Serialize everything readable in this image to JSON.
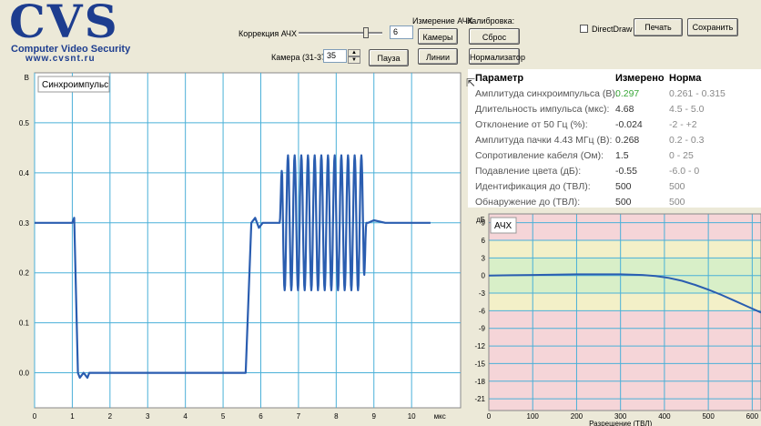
{
  "logo": {
    "title": "CVS",
    "subtitle": "Computer Video Security",
    "url": "www.cvsnt.ru"
  },
  "controls": {
    "correction_label": "Коррекция АЧХ",
    "correction_value": "6",
    "correction_level": 0.83,
    "camera_label": "Камера (31-37)",
    "camera_value": "35",
    "pause": "Пауза",
    "afc_measure_label": "Измерение АЧХ",
    "cameras_button": "Камеры",
    "lines_button": "Линии",
    "calibration_label": "Калибровка:",
    "reset_button": "Сброс",
    "normalizer_button": "Нормализатор",
    "directdraw_label": "DirectDraw",
    "print_button": "Печать",
    "save_button": "Сохранить"
  },
  "params": {
    "header": {
      "name": "Параметр",
      "measured": "Измерено",
      "norm": "Норма"
    },
    "rows": [
      {
        "name": "Амплитуда синхроимпульса (В):",
        "measured": "0.297",
        "norm": "0.261 - 0.315",
        "ok_color": "#3aa83a"
      },
      {
        "name": "Длительность импульса (мкс):",
        "measured": "4.68",
        "norm": "4.5 - 5.0"
      },
      {
        "name": "Отклонение от 50 Гц (%):",
        "measured": "-0.024",
        "norm": "-2 - +2"
      },
      {
        "name": "Амплитуда пачки 4.43 МГц (В):",
        "measured": "0.268",
        "norm": "0.2 - 0.3"
      },
      {
        "name": "Сопротивление кабеля (Ом):",
        "measured": "1.5",
        "norm": "0 - 25"
      },
      {
        "name": "Подавление цвета (дБ):",
        "measured": "-0.55",
        "norm": "-6.0 - 0"
      },
      {
        "name": "Идентификация до (ТВЛ):",
        "measured": "500",
        "norm": "500"
      },
      {
        "name": "Обнаружение до (ТВЛ):",
        "measured": "500",
        "norm": "500"
      }
    ]
  },
  "chart_data": [
    {
      "type": "line",
      "title": "Синхроимпульс",
      "ylabel": "В",
      "xlabel": "мкс",
      "x_ticks": [
        "0",
        "1",
        "2",
        "3",
        "4",
        "5",
        "6",
        "7",
        "8",
        "9",
        "10"
      ],
      "y_ticks": [
        "0.0",
        "0.1",
        "0.2",
        "0.3",
        "0.4",
        "0.5"
      ],
      "xlim": [
        0,
        11.3
      ],
      "ylim": [
        -0.07,
        0.6
      ],
      "grid": true,
      "series": [
        {
          "color": "#2a5db0",
          "x": [
            0,
            1.0,
            1.05,
            1.15,
            1.2,
            1.3,
            1.4,
            1.45,
            1.55,
            5.5,
            5.6,
            5.75,
            5.85,
            5.95,
            6.05,
            6.2,
            6.4
          ],
          "y": [
            0.3,
            0.3,
            0.31,
            0.0,
            -0.01,
            0.0,
            -0.01,
            0.0,
            0.0,
            0.0,
            0.0,
            0.3,
            0.31,
            0.29,
            0.3,
            0.3,
            0.3
          ],
          "burst": {
            "x_start": 6.5,
            "x_end": 8.8,
            "center": 0.3,
            "amplitude": 0.135,
            "cycles": 13
          },
          "tail_x": [
            8.85,
            9.0,
            9.3,
            10.5
          ],
          "tail_y": [
            0.3,
            0.305,
            0.3,
            0.3
          ]
        }
      ]
    },
    {
      "type": "line",
      "title": "АЧХ",
      "ylabel": "дБ",
      "xlabel": "Разрешение (ТВЛ)",
      "x_ticks": [
        "0",
        "100",
        "200",
        "300",
        "400",
        "500",
        "600"
      ],
      "y_ticks": [
        "9",
        "6",
        "3",
        "0",
        "-3",
        "-6",
        "-9",
        "-12",
        "-15",
        "-18",
        "-21"
      ],
      "xlim": [
        0,
        620
      ],
      "ylim": [
        -23,
        10.5
      ],
      "bands": [
        {
          "from": 6,
          "to": 10.5,
          "color": "#f5d5d8"
        },
        {
          "from": 3,
          "to": 6,
          "color": "#f3f0c8"
        },
        {
          "from": -3,
          "to": 3,
          "color": "#d8efc8"
        },
        {
          "from": -6,
          "to": -3,
          "color": "#f3f0c8"
        },
        {
          "from": -23,
          "to": -6,
          "color": "#f5d5d8"
        }
      ],
      "series": [
        {
          "color": "#2a5db0",
          "x": [
            0,
            50,
            100,
            150,
            200,
            250,
            300,
            350,
            380,
            410,
            440,
            470,
            500,
            530,
            560,
            590,
            620
          ],
          "y": [
            0,
            0.05,
            0.1,
            0.15,
            0.2,
            0.2,
            0.2,
            0.1,
            -0.1,
            -0.4,
            -0.9,
            -1.6,
            -2.4,
            -3.3,
            -4.3,
            -5.3,
            -6.3
          ]
        }
      ]
    }
  ]
}
